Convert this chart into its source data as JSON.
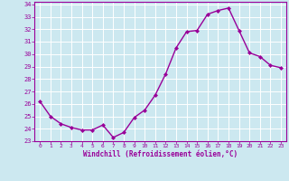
{
  "x": [
    0,
    1,
    2,
    3,
    4,
    5,
    6,
    7,
    8,
    9,
    10,
    11,
    12,
    13,
    14,
    15,
    16,
    17,
    18,
    19,
    20,
    21,
    22,
    23
  ],
  "y": [
    26.2,
    25.0,
    24.4,
    24.1,
    23.9,
    23.9,
    24.3,
    23.3,
    23.7,
    24.9,
    25.5,
    26.7,
    28.4,
    30.5,
    31.8,
    31.9,
    33.2,
    33.5,
    33.7,
    31.9,
    30.1,
    29.8,
    29.1,
    28.9
  ],
  "line_color": "#990099",
  "marker": "D",
  "marker_size": 2.0,
  "bg_color": "#cce8f0",
  "grid_color": "#ffffff",
  "xlabel": "Windchill (Refroidissement éolien,°C)",
  "xlabel_color": "#990099",
  "tick_color": "#990099",
  "ylim": [
    23,
    34
  ],
  "xlim": [
    -0.5,
    23.5
  ],
  "yticks": [
    23,
    24,
    25,
    26,
    27,
    28,
    29,
    30,
    31,
    32,
    33,
    34
  ],
  "xticks": [
    0,
    1,
    2,
    3,
    4,
    5,
    6,
    7,
    8,
    9,
    10,
    11,
    12,
    13,
    14,
    15,
    16,
    17,
    18,
    19,
    20,
    21,
    22,
    23
  ],
  "linewidth": 1.0,
  "spine_color": "#990099"
}
